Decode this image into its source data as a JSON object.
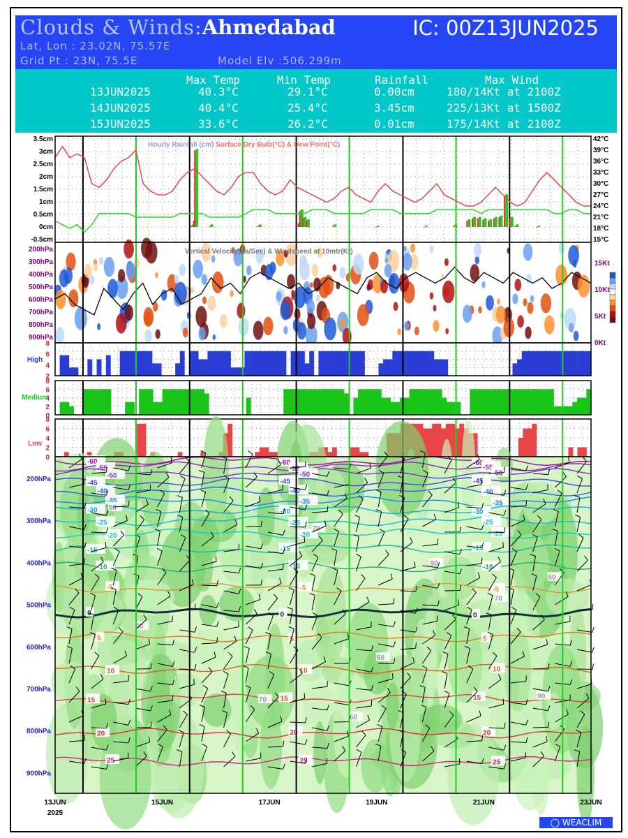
{
  "header": {
    "title_prefix": "Clouds & Winds:",
    "city": "Ahmedabad",
    "ic": "IC: 00Z13JUN2025",
    "latlon": "Lat, Lon : 23.02N, 75.57E",
    "gridpt": "Grid Pt   : 23N, 75.5E",
    "model_elv": "Model Elv :506.299m"
  },
  "stats": {
    "headers": [
      "Max Temp",
      "Min Temp",
      "Rainfall",
      "Max Wind"
    ],
    "rows": [
      [
        "13JUN2025",
        "40.3°C",
        "29.1°C",
        "0.00cm",
        "180/14Kt at 2100Z"
      ],
      [
        "14JUN2025",
        "40.4°C",
        "25.4°C",
        "3.45cm",
        "225/13Kt at 1500Z"
      ],
      [
        "15JUN2025",
        "33.6°C",
        "26.2°C",
        "0.01cm",
        "175/14Kt at 2100Z"
      ]
    ]
  },
  "chart_data": [
    {
      "type": "line",
      "title": "Hourly Rainfall (cm)   Surface Dry Bulb(°C) & Dew Point(°C)",
      "y_left_ticks": [
        "3.5cm",
        "3cm",
        "2.5cm",
        "2cm",
        "1.5cm",
        "1cm",
        "0.5cm",
        "0cm",
        "-0.5cm"
      ],
      "y_right_ticks": [
        "42°C",
        "39°C",
        "36°C",
        "33°C",
        "30°C",
        "27°C",
        "24°C",
        "21°C",
        "18°C",
        "15°C"
      ],
      "ylim_left": [
        -0.5,
        3.5
      ],
      "ylim_right": [
        15,
        42
      ],
      "series": [
        {
          "color": "#e84646",
          "values": [
            37,
            40,
            37,
            38,
            37,
            30,
            29,
            31,
            34,
            36,
            37,
            39,
            30,
            28,
            27,
            27,
            28,
            31,
            33,
            34,
            32,
            30,
            28,
            27,
            29,
            32,
            33,
            33,
            30,
            28,
            27,
            28,
            31,
            29,
            28,
            27,
            26,
            25,
            26,
            28,
            29,
            27,
            26,
            25,
            28,
            30,
            28,
            27,
            26,
            25,
            26,
            28,
            30,
            27,
            26,
            25,
            24,
            24,
            25,
            27,
            29,
            27,
            25,
            24,
            25,
            28,
            31,
            33,
            31,
            29,
            27,
            25,
            24,
            24
          ]
        },
        {
          "color": "#22dd22",
          "values": [
            20,
            19,
            18,
            19,
            17,
            19,
            22,
            22,
            22,
            22,
            22,
            21,
            21,
            21,
            21,
            21,
            21,
            22,
            22,
            22,
            22,
            21,
            21,
            21,
            21,
            21,
            22,
            23,
            23,
            23,
            22,
            22,
            22,
            22,
            22,
            23,
            23,
            23,
            22,
            22,
            22,
            22,
            22,
            23,
            23,
            23,
            23,
            22,
            22,
            22,
            22,
            22,
            23,
            23,
            23,
            23,
            23,
            23,
            22,
            23,
            23,
            23,
            23,
            23,
            23,
            23,
            23,
            23,
            22,
            22,
            23,
            23,
            22,
            22
          ]
        }
      ],
      "rain_bars": [
        {
          "x": 0.255,
          "v": 0.1
        },
        {
          "x": 0.26,
          "v": 0.3
        },
        {
          "x": 0.262,
          "v": 3.1
        },
        {
          "x": 0.29,
          "v": 0.1
        },
        {
          "x": 0.38,
          "v": 0.1
        },
        {
          "x": 0.455,
          "v": 0.2
        },
        {
          "x": 0.458,
          "v": 0.7
        },
        {
          "x": 0.464,
          "v": 0.4
        },
        {
          "x": 0.47,
          "v": 0.3
        },
        {
          "x": 0.52,
          "v": 0.1
        },
        {
          "x": 0.6,
          "v": 0.05
        },
        {
          "x": 0.69,
          "v": 0.05
        },
        {
          "x": 0.745,
          "v": 0.1
        },
        {
          "x": 0.77,
          "v": 0.3
        },
        {
          "x": 0.78,
          "v": 0.4
        },
        {
          "x": 0.79,
          "v": 0.4
        },
        {
          "x": 0.8,
          "v": 0.35
        },
        {
          "x": 0.81,
          "v": 0.3
        },
        {
          "x": 0.82,
          "v": 0.4
        },
        {
          "x": 0.83,
          "v": 0.45
        },
        {
          "x": 0.84,
          "v": 1.3
        },
        {
          "x": 0.85,
          "v": 0.4
        },
        {
          "x": 0.86,
          "v": 0.1
        },
        {
          "x": 0.9,
          "v": 0.05
        }
      ]
    },
    {
      "type": "heatmap",
      "title": "Vertical Velocity(Pa/Sec) & Windspeed at 10mtr(Kt)",
      "y_ticks": [
        "200hPa",
        "300hPa",
        "400hPa",
        "500hPa",
        "600hPa",
        "700hPa",
        "800hPa",
        "900hPa"
      ],
      "y_right_ticks": [
        "15Kt",
        "10Kt",
        "5Kt",
        "0Kt"
      ],
      "wind10m": [
        8,
        9,
        7,
        6,
        5,
        10,
        8,
        6,
        9,
        11,
        7,
        9,
        10,
        7,
        8,
        9,
        12,
        10,
        11,
        9,
        12,
        13,
        12,
        11,
        10,
        11,
        9,
        10,
        12,
        11,
        10,
        9,
        12,
        13,
        11,
        10,
        12,
        13,
        12,
        11,
        12,
        14,
        12,
        11,
        13,
        12,
        11,
        13,
        12,
        11,
        12,
        10,
        11,
        13,
        12,
        11
      ],
      "colorbar": [
        "#1e5ad8",
        "#6aa0f0",
        "#bfd8f8",
        "#ffffff",
        "#ffd0a0",
        "#ff9030",
        "#e05010",
        "#b01010",
        "#701010"
      ]
    },
    {
      "type": "bar",
      "title": "High",
      "ylim": [
        0,
        8
      ],
      "y_ticks": [
        "8",
        "6",
        "4",
        "2"
      ],
      "values": [
        0,
        5,
        5,
        2,
        2,
        0,
        0,
        4,
        0,
        4,
        0,
        5,
        0,
        0,
        6,
        6,
        6,
        6,
        6,
        6,
        6,
        3,
        3,
        0,
        0,
        0,
        3,
        6,
        0,
        6,
        6,
        4,
        4,
        6,
        6,
        6,
        6,
        6,
        2,
        2,
        2,
        6,
        6,
        6,
        6,
        6,
        6,
        6,
        6,
        6,
        0,
        6,
        6,
        6,
        3,
        6,
        0,
        6,
        6,
        6,
        6,
        6,
        6,
        6,
        6,
        6,
        6,
        0,
        0,
        0,
        3,
        4,
        4,
        6,
        6,
        6,
        6,
        6,
        6,
        6,
        6,
        6,
        4,
        4,
        4,
        0,
        0,
        0,
        0,
        0,
        0,
        0,
        0,
        0,
        0,
        0,
        0,
        0,
        0,
        3,
        4,
        6,
        6,
        6,
        6,
        6,
        6,
        6,
        6,
        6,
        6,
        6,
        6,
        6,
        6,
        6
      ]
    },
    {
      "type": "bar",
      "title": "Medium",
      "ylim": [
        0,
        8
      ],
      "y_ticks": [
        "8",
        "6",
        "4",
        "2",
        "0"
      ],
      "values": [
        0,
        3,
        3,
        2,
        0,
        0,
        6,
        6,
        6,
        6,
        6,
        6,
        0,
        0,
        0,
        3,
        3,
        0,
        6,
        6,
        6,
        3,
        3,
        6,
        6,
        6,
        6,
        6,
        6,
        6,
        6,
        6,
        5,
        0,
        0,
        0,
        0,
        0,
        0,
        0,
        0,
        4,
        0,
        0,
        0,
        0,
        0,
        0,
        0,
        6,
        6,
        6,
        6,
        6,
        6,
        6,
        6,
        6,
        6,
        6,
        6,
        6,
        5,
        0,
        4,
        6,
        6,
        6,
        6,
        6,
        4,
        4,
        3,
        3,
        4,
        4,
        6,
        6,
        6,
        6,
        6,
        6,
        6,
        4,
        3,
        3,
        3,
        0,
        0,
        6,
        6,
        6,
        6,
        6,
        6,
        6,
        6,
        6,
        6,
        6,
        6,
        6,
        6,
        6,
        6,
        6,
        6,
        2,
        2,
        2,
        2,
        3,
        4,
        4,
        6
      ]
    },
    {
      "type": "bar",
      "title": "Low",
      "ylim": [
        0,
        8
      ],
      "y_ticks": [
        "8",
        "6",
        "4",
        "2",
        "0"
      ],
      "values": [
        0,
        0,
        1,
        0,
        0,
        0,
        0,
        1,
        0,
        0,
        0,
        0,
        0,
        1,
        1,
        0,
        0,
        0,
        7,
        7,
        0,
        1,
        0,
        0,
        0,
        0,
        0,
        1,
        0,
        0,
        0,
        0,
        1,
        0,
        0,
        0,
        1,
        5,
        7,
        0,
        0,
        0,
        0,
        0,
        1,
        2,
        2,
        1,
        1,
        0,
        0,
        0,
        0,
        0,
        0,
        0,
        1,
        1,
        2,
        2,
        1,
        2,
        0,
        0,
        0,
        2,
        2,
        1,
        1,
        0,
        0,
        0,
        0,
        5,
        5,
        5,
        7,
        7,
        7,
        7,
        7,
        6,
        6,
        7,
        7,
        6,
        7,
        7,
        6,
        7,
        6,
        5,
        5,
        0,
        0,
        0,
        0,
        0,
        0,
        0,
        0,
        0,
        4,
        6,
        6,
        7,
        0,
        0,
        0,
        0,
        0,
        0,
        0,
        2,
        0,
        2,
        2,
        0
      ]
    },
    {
      "type": "line",
      "title": "",
      "y_ticks": [
        "200hPa",
        "300hPa",
        "400hPa",
        "500hPa",
        "600hPa",
        "700hPa",
        "800hPa",
        "900hPa"
      ],
      "x_ticks": [
        "13JUN",
        "15JUN",
        "17JUN",
        "19JUN",
        "21JUN",
        "23JUN"
      ],
      "x_sub": "2025",
      "temperature_labels": [
        "-60",
        "-55",
        "-50",
        "-45",
        "-40",
        "-35",
        "-30",
        "-25",
        "-20",
        "-15",
        "-10",
        "-5",
        "0",
        "5",
        "10",
        "15",
        "20",
        "25"
      ],
      "rh_labels": [
        "50",
        "70",
        "90"
      ]
    }
  ],
  "brand": "WEACLIM"
}
